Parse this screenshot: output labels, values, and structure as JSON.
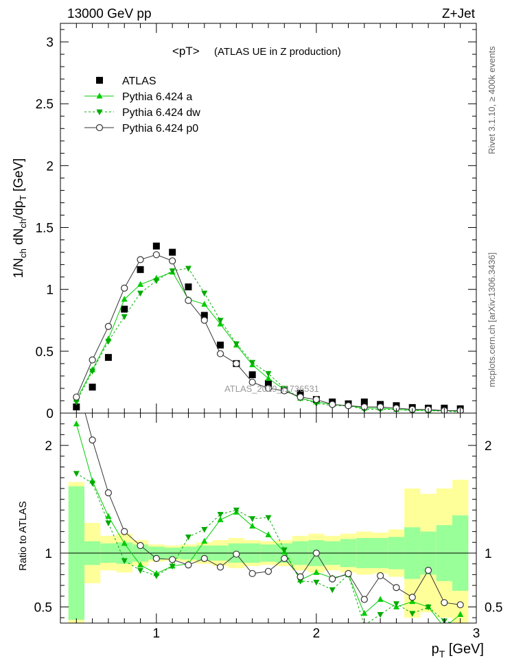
{
  "header": {
    "left": "13000 GeV pp",
    "right": "Z+Jet"
  },
  "side_labels": {
    "rivet": "Rivet 3.1.10, ≥ 400k events",
    "mcplots": "mcplots.cern.ch [arXiv:1306.3436]"
  },
  "chart_data": [
    {
      "type": "line",
      "panel": "main",
      "title": "<pT>",
      "subtitle": "(ATLAS UE in Z production)",
      "watermark": "ATLAS_2019_I1736531",
      "ylabel_parts": {
        "a": "1/N",
        "b": "ch",
        "c": " dN",
        "d": "ch",
        "e": "/dp",
        "f": "T",
        "g": " [GeV]"
      },
      "xlim": [
        0.4,
        3.0
      ],
      "ylim": [
        0,
        3.15
      ],
      "yticks": [
        0,
        0.5,
        1,
        1.5,
        2,
        2.5,
        3
      ],
      "ytick_labels": [
        "0",
        "0.5",
        "1",
        "1.5",
        "2",
        "2.5",
        "3"
      ],
      "legend_position": "top-left",
      "x": [
        0.5,
        0.6,
        0.7,
        0.8,
        0.9,
        1.0,
        1.1,
        1.2,
        1.3,
        1.4,
        1.5,
        1.6,
        1.7,
        1.8,
        1.9,
        2.0,
        2.1,
        2.2,
        2.3,
        2.4,
        2.5,
        2.6,
        2.7,
        2.8,
        2.9
      ],
      "series": [
        {
          "name": "ATLAS",
          "color": "#000000",
          "marker": "square",
          "values": [
            0.05,
            0.21,
            0.45,
            0.84,
            1.16,
            1.35,
            1.3,
            1.02,
            0.79,
            0.55,
            0.4,
            0.31,
            0.24,
            0.19,
            0.16,
            0.11,
            0.09,
            0.075,
            0.09,
            0.07,
            0.06,
            0.045,
            0.04,
            0.04,
            0.035
          ]
        },
        {
          "name": "Pythia 6.424 a",
          "color": "#00cc00",
          "marker": "triangle-up",
          "dash": "none",
          "values": [
            0.11,
            0.35,
            0.6,
            0.92,
            1.04,
            1.09,
            1.14,
            0.92,
            0.88,
            0.72,
            0.55,
            0.39,
            0.28,
            0.19,
            0.12,
            0.09,
            0.07,
            0.06,
            0.04,
            0.04,
            0.03,
            0.025,
            0.02,
            0.02,
            0.015
          ]
        },
        {
          "name": "Pythia 6.424 dw",
          "color": "#00aa00",
          "marker": "triangle-down",
          "dash": "3,3",
          "values": [
            0.09,
            0.34,
            0.58,
            0.78,
            0.97,
            1.07,
            1.15,
            1.17,
            0.97,
            0.75,
            0.56,
            0.41,
            0.32,
            0.2,
            0.12,
            0.08,
            0.06,
            0.06,
            0.03,
            0.03,
            0.03,
            0.02,
            0.02,
            0.015,
            0.01
          ]
        },
        {
          "name": "Pythia 6.424 p0",
          "color": "#333333",
          "marker": "circle",
          "dash": "none",
          "values": [
            0.13,
            0.43,
            0.7,
            1.01,
            1.24,
            1.28,
            1.23,
            0.91,
            0.75,
            0.48,
            0.4,
            0.25,
            0.2,
            0.18,
            0.13,
            0.11,
            0.07,
            0.06,
            0.05,
            0.05,
            0.04,
            0.03,
            0.03,
            0.02,
            0.02
          ]
        }
      ]
    },
    {
      "type": "line",
      "panel": "ratio",
      "ylabel": "Ratio to ATLAS",
      "xlabel_parts": {
        "a": "p",
        "b": "T",
        "c": " [GeV]"
      },
      "xlim": [
        0.4,
        3.0
      ],
      "ylim": [
        0.35,
        2.3
      ],
      "xticks": [
        1,
        2,
        3
      ],
      "xtick_labels": [
        "1",
        "2",
        "3"
      ],
      "yticks": [
        0.5,
        1,
        2
      ],
      "ytick_labels": [
        "0.5",
        "1",
        "2"
      ],
      "bands": {
        "x_edges": [
          0.45,
          0.55,
          0.65,
          0.75,
          0.85,
          0.95,
          1.05,
          1.15,
          1.25,
          1.35,
          1.45,
          1.55,
          1.65,
          1.75,
          1.85,
          1.95,
          2.05,
          2.15,
          2.25,
          2.35,
          2.45,
          2.55,
          2.65,
          2.75,
          2.85,
          2.95
        ],
        "stat_color": "#99ff99",
        "total_color": "#ffff99",
        "stat_half_width": [
          0.62,
          0.11,
          0.09,
          0.1,
          0.08,
          0.06,
          0.05,
          0.06,
          0.07,
          0.07,
          0.09,
          0.09,
          0.08,
          0.09,
          0.11,
          0.12,
          0.11,
          0.13,
          0.14,
          0.14,
          0.15,
          0.24,
          0.2,
          0.26,
          0.35
        ],
        "total_half_width": [
          0.66,
          0.28,
          0.16,
          0.18,
          0.12,
          0.08,
          0.07,
          0.08,
          0.1,
          0.12,
          0.14,
          0.12,
          0.11,
          0.12,
          0.16,
          0.18,
          0.16,
          0.18,
          0.2,
          0.19,
          0.22,
          0.6,
          0.55,
          0.6,
          0.68
        ]
      },
      "series": [
        {
          "name": "Pythia 6.424 a",
          "color": "#00cc00",
          "marker": "triangle-up",
          "values": [
            2.2,
            1.67,
            1.34,
            1.09,
            0.89,
            0.81,
            0.88,
            0.9,
            1.11,
            1.31,
            1.38,
            1.25,
            1.17,
            1.01,
            0.75,
            0.82,
            0.77,
            0.8,
            0.44,
            0.57,
            0.5,
            0.55,
            0.5,
            0.31,
            0.43
          ]
        },
        {
          "name": "Pythia 6.424 dw",
          "color": "#00aa00",
          "marker": "triangle-down",
          "values": [
            1.74,
            1.65,
            1.28,
            0.93,
            0.84,
            0.79,
            0.88,
            1.15,
            1.22,
            1.36,
            1.4,
            1.32,
            1.33,
            1.03,
            0.74,
            0.73,
            0.66,
            0.8,
            0.33,
            0.43,
            0.53,
            0.44,
            0.5,
            0.37,
            0.33
          ]
        },
        {
          "name": "Pythia 6.424 p0",
          "color": "#333333",
          "marker": "circle",
          "values": [
            2.6,
            2.05,
            1.56,
            1.2,
            1.07,
            0.95,
            0.94,
            0.89,
            0.95,
            0.87,
            0.99,
            0.81,
            0.83,
            0.95,
            0.78,
            1.0,
            0.76,
            0.81,
            0.57,
            0.79,
            0.68,
            0.59,
            0.84,
            0.54,
            0.52
          ]
        }
      ]
    }
  ]
}
